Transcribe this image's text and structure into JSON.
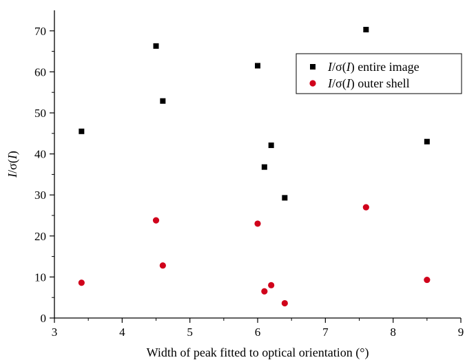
{
  "chart_data": {
    "type": "scatter",
    "xlabel": "Width of peak fitted to optical orientation (°)",
    "ylabel_italic": "I",
    "ylabel_mid": "/σ(",
    "ylabel_italic2": "I",
    "ylabel_end": ")",
    "xlim": [
      3,
      9
    ],
    "ylim": [
      0,
      75
    ],
    "xticks": [
      3,
      4,
      5,
      6,
      7,
      8,
      9
    ],
    "yticks": [
      0,
      10,
      20,
      30,
      40,
      50,
      60,
      70
    ],
    "legend_position": "top-right",
    "series": [
      {
        "key": "entire",
        "name_italic": "I",
        "name_mid": "/σ(",
        "name_italic2": "I",
        "name_end": ") entire image",
        "marker": "square",
        "color": "#000000",
        "x": [
          3.4,
          4.5,
          4.6,
          6.0,
          6.1,
          6.2,
          6.4,
          7.6,
          8.5
        ],
        "y": [
          45.5,
          66.3,
          52.9,
          61.5,
          36.8,
          42.1,
          29.3,
          70.3,
          43.0
        ]
      },
      {
        "key": "outer",
        "name_italic": "I",
        "name_mid": "/σ(",
        "name_italic2": "I",
        "name_end": ") outer shell",
        "marker": "circle",
        "color": "#d0021b",
        "x": [
          3.4,
          4.5,
          4.6,
          6.0,
          6.1,
          6.2,
          6.4,
          7.6,
          8.5
        ],
        "y": [
          8.6,
          23.8,
          12.8,
          23.0,
          6.5,
          8.0,
          3.6,
          27.0,
          9.3
        ]
      }
    ]
  }
}
